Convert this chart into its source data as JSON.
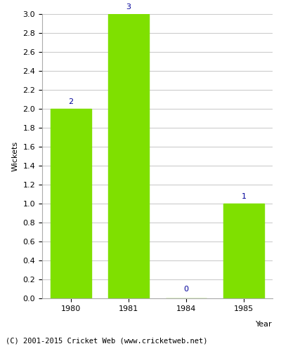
{
  "title": "",
  "years": [
    "1980",
    "1981",
    "1984",
    "1985"
  ],
  "values": [
    2,
    3,
    0,
    1
  ],
  "bar_color": "#7FE000",
  "bar_width": 0.7,
  "xlabel": "Year",
  "ylabel": "Wickets",
  "ylim": [
    0,
    3.0
  ],
  "yticks": [
    0.0,
    0.2,
    0.4,
    0.6,
    0.8,
    1.0,
    1.2,
    1.4,
    1.6,
    1.8,
    2.0,
    2.2,
    2.4,
    2.6,
    2.8,
    3.0
  ],
  "label_color": "#000099",
  "label_fontsize": 8,
  "axis_fontsize": 8,
  "tick_fontsize": 8,
  "footer_text": "(C) 2001-2015 Cricket Web (www.cricketweb.net)",
  "footer_fontsize": 7.5,
  "background_color": "#ffffff",
  "grid_color": "#cccccc"
}
